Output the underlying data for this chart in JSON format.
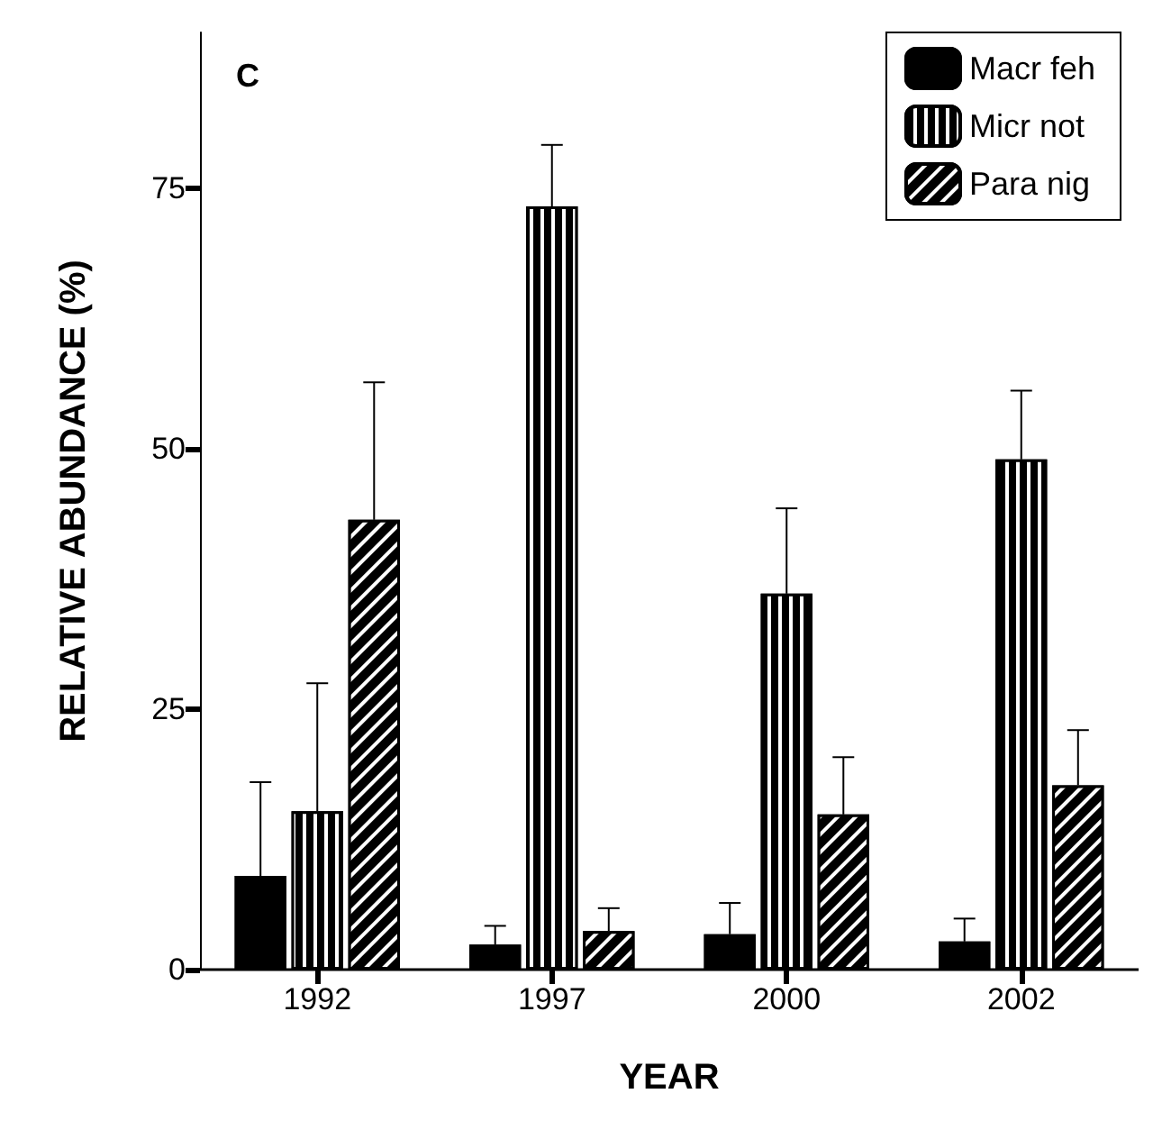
{
  "chart_data": {
    "type": "bar",
    "title": "C",
    "xlabel": "YEAR",
    "ylabel": "RELATIVE ABUNDANCE (%)",
    "categories": [
      "1992",
      "1997",
      "2000",
      "2002"
    ],
    "series": [
      {
        "name": "Macr feh",
        "color": "#000000",
        "values": [
          9,
          2.4,
          3.4,
          2.7
        ],
        "errors": [
          [
            9,
            18
          ],
          [
            2.4,
            4.2
          ],
          [
            3.4,
            6.4
          ],
          [
            2.7,
            4.9
          ]
        ]
      },
      {
        "name": "Micr not",
        "color": "#000000",
        "values": [
          15.2,
          73.3,
          36.1,
          49
        ],
        "errors": [
          [
            15.2,
            27.5
          ],
          [
            73.3,
            79.2
          ],
          [
            36.1,
            44.3
          ],
          [
            49,
            55.6
          ]
        ]
      },
      {
        "name": "Para nig",
        "color": "#000000",
        "values": [
          43.2,
          3.7,
          14.9,
          17.7
        ],
        "errors": [
          [
            43.2,
            56.4
          ],
          [
            3.7,
            5.9
          ],
          [
            14.9,
            20.4
          ],
          [
            17.7,
            23
          ]
        ]
      }
    ],
    "ylim": [
      0,
      90
    ],
    "yticks": [
      0,
      25,
      50,
      75
    ],
    "grid": false,
    "legend": "top right"
  }
}
